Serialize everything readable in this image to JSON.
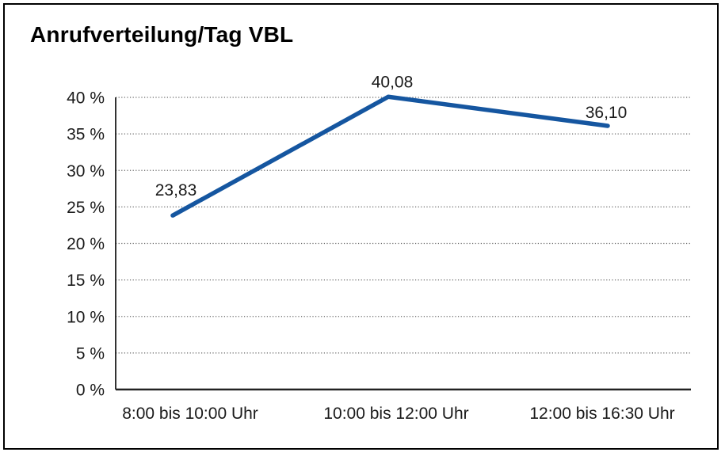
{
  "colors": {
    "line": "#1556A0",
    "grid": "#666666",
    "y_axis": "#000000",
    "x_axis": "#222222",
    "text": "#1a1a1a",
    "frame_border": "#000000",
    "background": "#ffffff"
  },
  "chart_data": {
    "type": "line",
    "title": "Anrufverteilung/Tag VBL",
    "categories": [
      "8:00 bis 10:00 Uhr",
      "10:00 bis 12:00 Uhr",
      "12:00 bis 16:30 Uhr"
    ],
    "values": [
      23.83,
      40.08,
      36.1
    ],
    "value_labels": [
      "23,83",
      "40,08",
      "36,10"
    ],
    "xlabel": "",
    "ylabel": "",
    "ylim": [
      0,
      40
    ],
    "ytick_step": 5,
    "ytick_labels": [
      "0 %",
      "5 %",
      "10 %",
      "15 %",
      "20 %",
      "25 %",
      "30 %",
      "35 %",
      "40 %"
    ],
    "grid": "horizontal-dotted",
    "legend": "none",
    "markers": "none"
  }
}
